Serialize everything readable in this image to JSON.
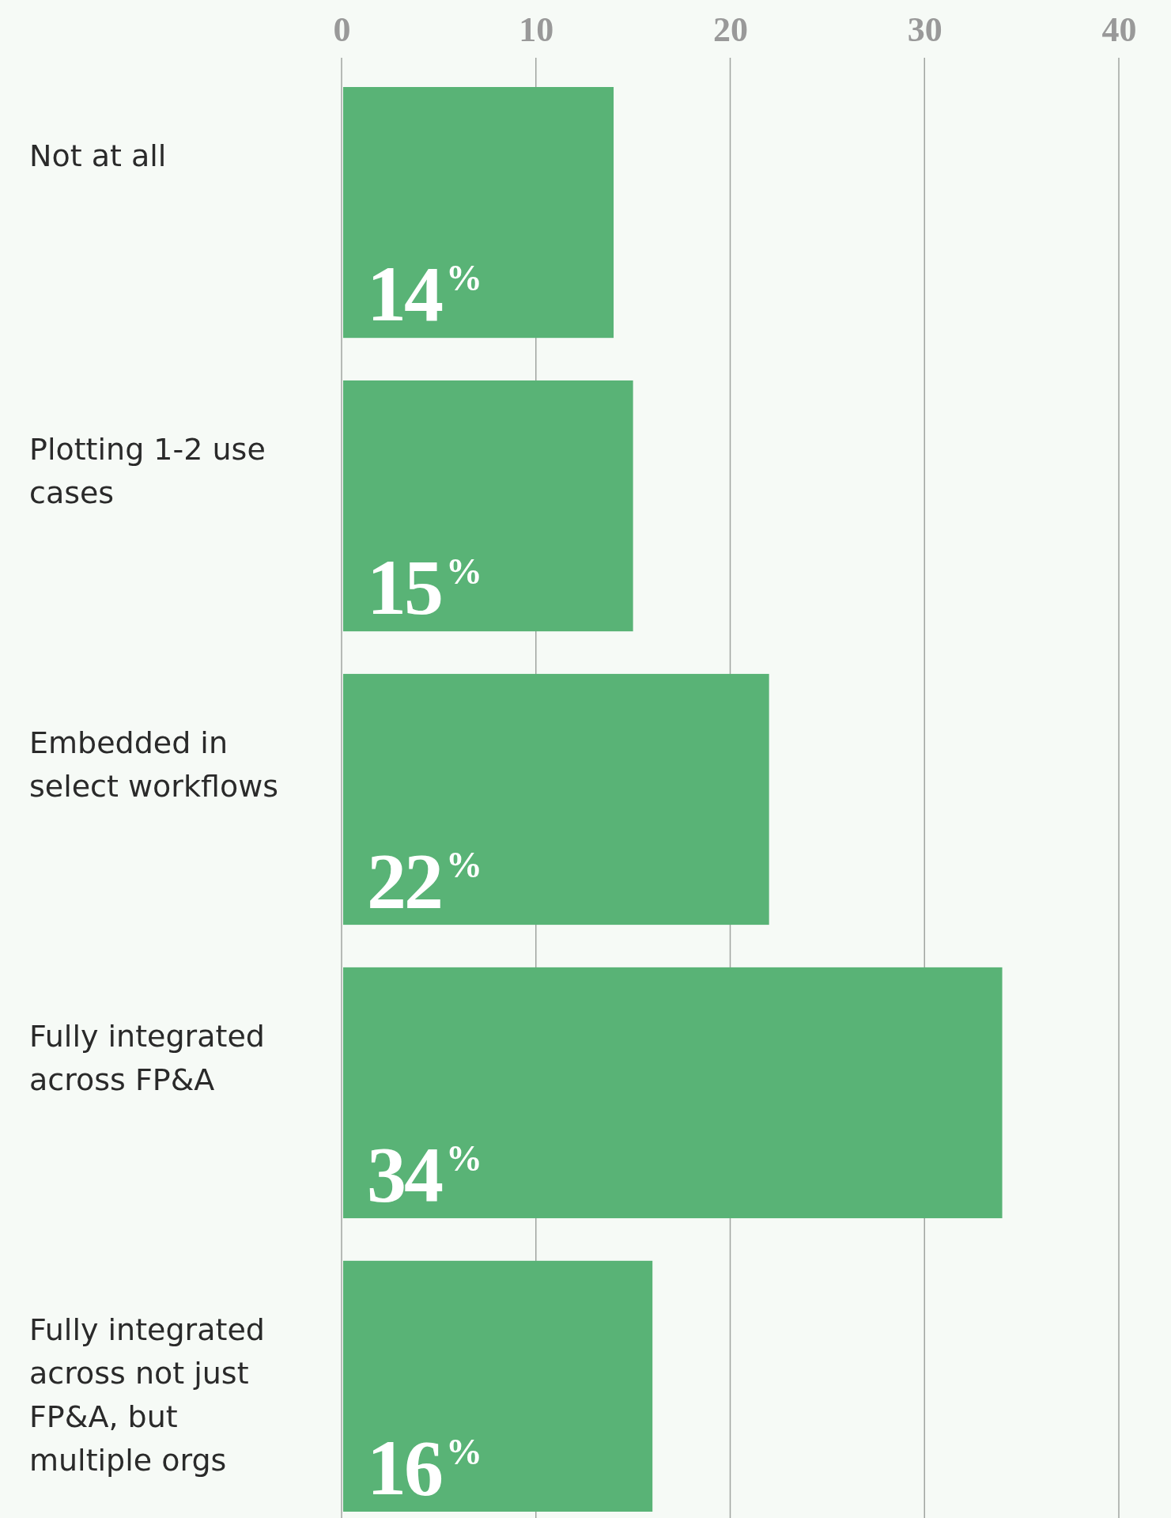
{
  "chart_data": {
    "type": "bar",
    "orientation": "horizontal",
    "categories": [
      "Not at all",
      "Plotting 1-2 use cases",
      "Embedded in select workflows",
      "Fully integrated across FP&A",
      "Fully integrated across not just FP&A, but multiple orgs"
    ],
    "values": [
      14,
      15,
      22,
      34,
      16
    ],
    "value_labels": [
      "14$^{%}$",
      "15$^{%}$",
      "22$^{%}$",
      "34$^{%}$",
      "16$^{%}$"
    ],
    "color": "#59b376",
    "xlim": [
      0,
      40
    ],
    "xticks": [
      0,
      10,
      20,
      30,
      40
    ],
    "grid": "x"
  }
}
